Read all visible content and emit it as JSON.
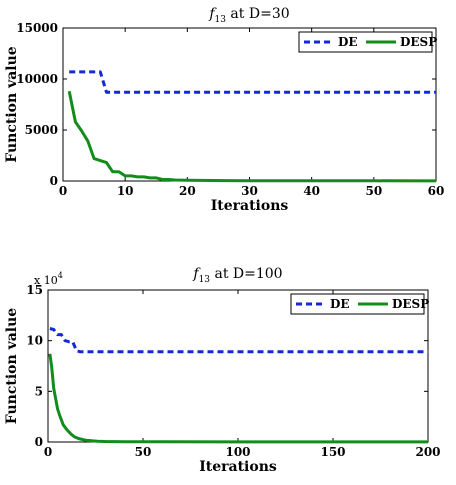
{
  "colors": {
    "de": "#1428d8",
    "desp": "#138c1b",
    "axis": "#000000"
  },
  "chart_data": [
    {
      "type": "line",
      "title": "f13 at D=30",
      "title_main": "f",
      "title_sub": "13",
      "title_rest": " at D=30",
      "xlabel": "Iterations",
      "ylabel": "Function value",
      "xlim": [
        0,
        60
      ],
      "ylim": [
        0,
        15000
      ],
      "xticks": [
        0,
        10,
        20,
        30,
        40,
        50,
        60
      ],
      "yticks": [
        0,
        5000,
        10000,
        15000
      ],
      "xtick_labels": [
        "0",
        "10",
        "20",
        "30",
        "40",
        "50",
        "60"
      ],
      "ytick_labels": [
        "0",
        "5000",
        "10000",
        "15000"
      ],
      "exponent_label": "",
      "legend": "top-right",
      "grid": false,
      "series": [
        {
          "name": "DE",
          "style": "dashed",
          "x": [
            1,
            2,
            3,
            4,
            5,
            6,
            7,
            8,
            60
          ],
          "y": [
            10700,
            10700,
            10700,
            10700,
            10700,
            10700,
            8700,
            8700,
            8700
          ]
        },
        {
          "name": "DESP",
          "style": "solid",
          "x": [
            1,
            2,
            3,
            4,
            5,
            6,
            7,
            8,
            9,
            10,
            11,
            12,
            13,
            14,
            15,
            16,
            17,
            18,
            20,
            22,
            24,
            26,
            30,
            40,
            50,
            60
          ],
          "y": [
            8800,
            5800,
            4900,
            3900,
            2200,
            2000,
            1800,
            900,
            900,
            500,
            500,
            400,
            400,
            300,
            300,
            150,
            150,
            100,
            80,
            60,
            50,
            40,
            30,
            20,
            15,
            10
          ]
        }
      ]
    },
    {
      "type": "line",
      "title": "f13 at D=100",
      "title_main": "f",
      "title_sub": "13",
      "title_rest": " at D=100",
      "xlabel": "Iterations",
      "ylabel": "Function value",
      "xlim": [
        0,
        200
      ],
      "ylim": [
        0,
        15
      ],
      "xticks": [
        0,
        50,
        100,
        150,
        200
      ],
      "yticks": [
        0,
        5,
        10,
        15
      ],
      "xtick_labels": [
        "0",
        "50",
        "100",
        "150",
        "200"
      ],
      "ytick_labels": [
        "0",
        "5",
        "10",
        "15"
      ],
      "exponent_label": "x 10",
      "exponent_power": "4",
      "legend": "top-right",
      "grid": false,
      "series": [
        {
          "name": "DE",
          "style": "dashed",
          "x": [
            1,
            3,
            5,
            7,
            9,
            11,
            13,
            15,
            17,
            200
          ],
          "y": [
            11.2,
            11.1,
            10.6,
            10.6,
            10.0,
            9.9,
            9.9,
            9.0,
            8.9,
            8.9
          ]
        },
        {
          "name": "DESP",
          "style": "solid",
          "x": [
            1,
            2,
            3,
            4,
            5,
            6,
            7,
            8,
            10,
            12,
            14,
            16,
            18,
            20,
            23,
            26,
            30,
            40,
            60,
            100,
            160,
            200
          ],
          "y": [
            8.7,
            7.3,
            5.3,
            4.3,
            3.3,
            2.7,
            2.2,
            1.7,
            1.2,
            0.8,
            0.5,
            0.35,
            0.25,
            0.18,
            0.12,
            0.08,
            0.05,
            0.03,
            0.02,
            0.01,
            0.01,
            0.01
          ]
        }
      ]
    }
  ]
}
